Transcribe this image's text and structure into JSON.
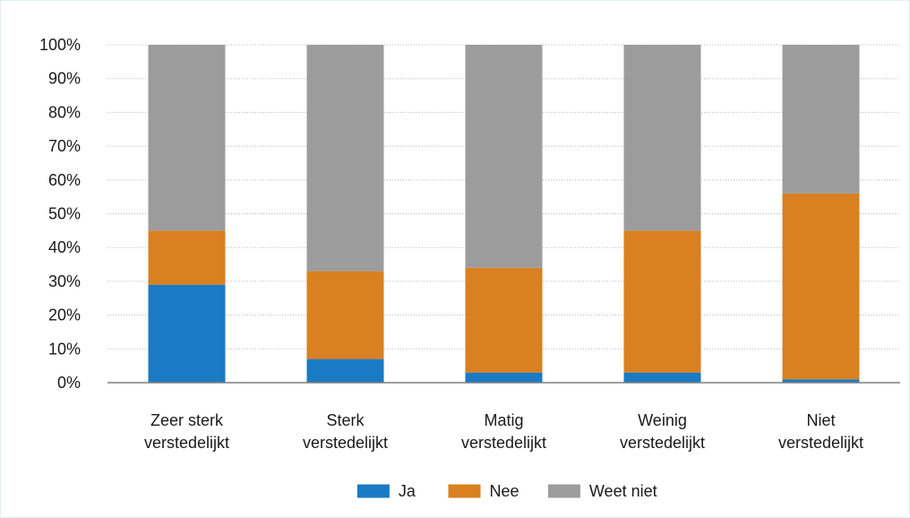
{
  "chart_data": {
    "type": "bar",
    "stacked": true,
    "title": "",
    "xlabel": "",
    "ylabel": "",
    "ylim": [
      0,
      100
    ],
    "yticks": [
      "0%",
      "10%",
      "20%",
      "30%",
      "40%",
      "50%",
      "60%",
      "70%",
      "80%",
      "90%",
      "100%"
    ],
    "grid": true,
    "legend_position": "bottom",
    "categories": [
      [
        "Zeer sterk",
        "verstedelijkt"
      ],
      [
        "Sterk",
        "verstedelijkt"
      ],
      [
        "Matig",
        "verstedelijkt"
      ],
      [
        "Weinig",
        "verstedelijkt"
      ],
      [
        "Niet",
        "verstedelijkt"
      ]
    ],
    "series": [
      {
        "name": "Ja",
        "color": "#1a7ac4",
        "values": [
          29,
          7,
          3,
          3,
          1
        ]
      },
      {
        "name": "Nee",
        "color": "#d98020",
        "values": [
          16,
          26,
          31,
          42,
          55
        ]
      },
      {
        "name": "Weet niet",
        "color": "#9c9c9c",
        "values": [
          55,
          67,
          66,
          55,
          44
        ]
      }
    ]
  }
}
